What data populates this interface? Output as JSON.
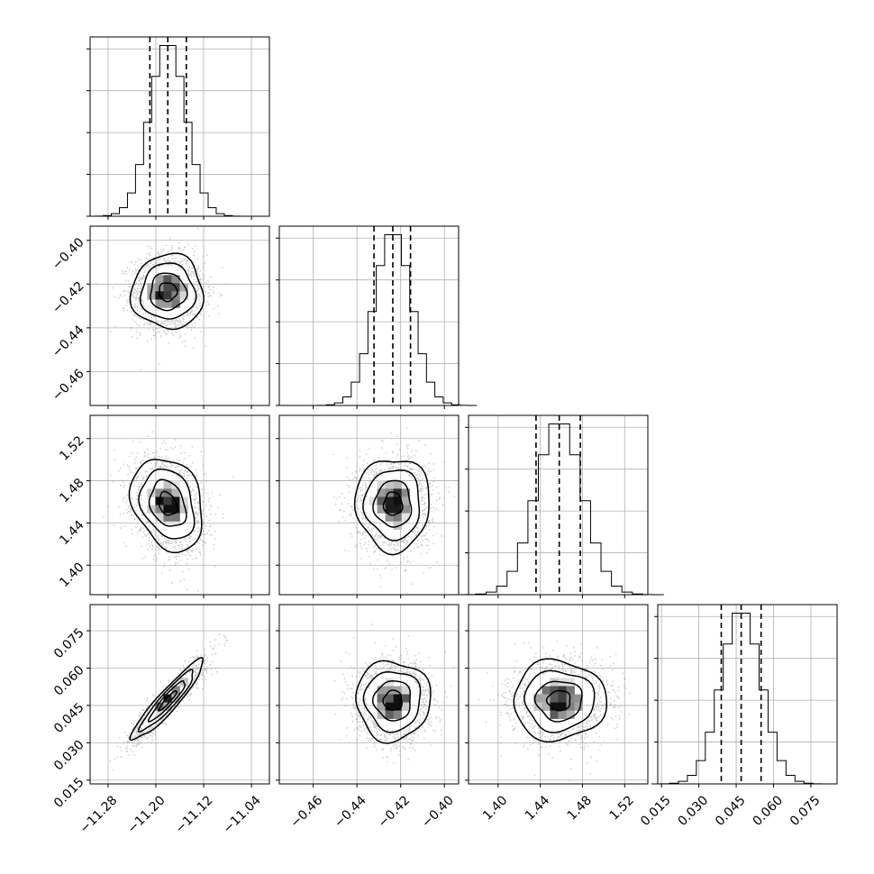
{
  "chart_data": {
    "type": "corner",
    "grid": true,
    "parameters": [
      {
        "range": [
          -11.31,
          -11.01
        ],
        "ticks": [
          -11.28,
          -11.2,
          -11.12,
          -11.04
        ],
        "tick_labels": [
          "−11.28",
          "−11.20",
          "−11.12",
          "−11.04"
        ],
        "mean": -11.18,
        "std": 0.03,
        "quantiles": [
          -11.21,
          -11.18,
          -11.149
        ]
      },
      {
        "range": [
          -0.4755,
          -0.3935
        ],
        "ticks": [
          -0.46,
          -0.44,
          -0.42,
          -0.4
        ],
        "tick_labels": [
          "−0.46",
          "−0.44",
          "−0.42",
          "−0.40"
        ],
        "mean": -0.4235,
        "std": 0.0085,
        "quantiles": [
          -0.4322,
          -0.4236,
          -0.4155
        ]
      },
      {
        "range": [
          1.372,
          1.542
        ],
        "ticks": [
          1.4,
          1.44,
          1.48,
          1.52
        ],
        "tick_labels": [
          "1.40",
          "1.44",
          "1.48",
          "1.52"
        ],
        "mean": 1.458,
        "std": 0.022,
        "quantiles": [
          1.436,
          1.458,
          1.478
        ]
      },
      {
        "range": [
          0.0135,
          0.0855
        ],
        "ticks": [
          0.015,
          0.03,
          0.045,
          0.06,
          0.075
        ],
        "tick_labels": [
          "0.015",
          "0.030",
          "0.045",
          "0.060",
          "0.075"
        ],
        "mean": 0.047,
        "std": 0.008,
        "quantiles": [
          0.039,
          0.047,
          0.055
        ]
      }
    ],
    "correlations": [
      {
        "pair": [
          0,
          1
        ],
        "rho": 0.0
      },
      {
        "pair": [
          0,
          2
        ],
        "rho": -0.25
      },
      {
        "pair": [
          1,
          2
        ],
        "rho": 0.0
      },
      {
        "pair": [
          0,
          3
        ],
        "rho": 0.93
      },
      {
        "pair": [
          1,
          3
        ],
        "rho": 0.0
      },
      {
        "pair": [
          2,
          3
        ],
        "rho": 0.0
      }
    ],
    "histogram_bins": 20,
    "contour_levels": [
      0.5,
      1.0,
      1.5,
      2.0
    ]
  }
}
